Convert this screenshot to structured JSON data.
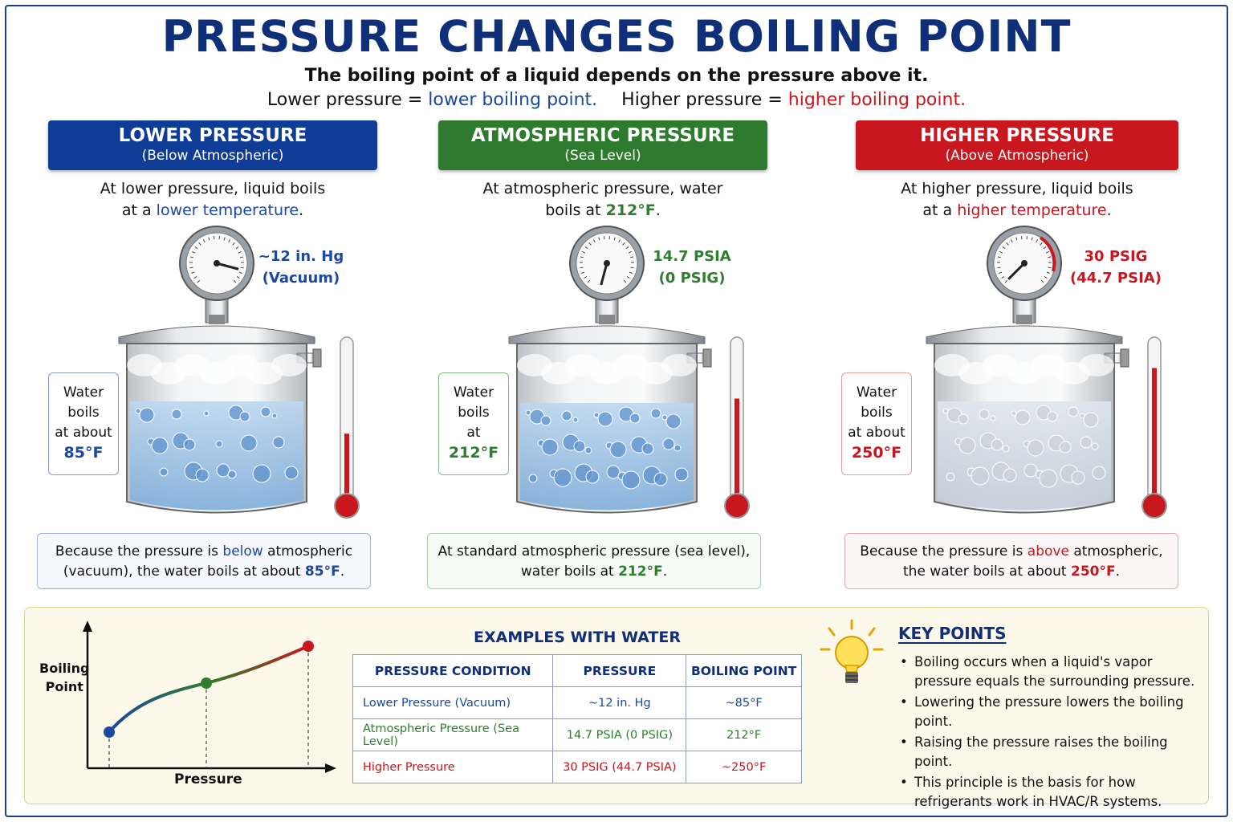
{
  "title": "PRESSURE CHANGES BOILING POINT",
  "subtitle": {
    "line1": "The boiling point of a liquid depends on the pressure above it.",
    "line2_a": "Lower pressure = ",
    "line2_b": "lower boiling point.",
    "line2_c": "Higher pressure = ",
    "line2_d": "higher boiling point."
  },
  "colors": {
    "blue": "#1b48a0",
    "green": "#2f7d2f",
    "red": "#c8171e",
    "title": "#0f2f78"
  },
  "panels": [
    {
      "banner_title": "LOWER PRESSURE",
      "banner_sub": "(Below Atmospheric)",
      "desc_a": "At lower pressure, liquid boils",
      "desc_b": "at a ",
      "desc_c": "lower temperature",
      "desc_d": ".",
      "gauge_1": "~12 in. Hg",
      "gauge_2": "(Vacuum)",
      "side_1": "Water",
      "side_2": "boils",
      "side_3": "at about",
      "side_value": "85°F",
      "note_a": "Because the pressure is ",
      "note_b": "below",
      "note_c": " atmospheric",
      "note_d": "(vacuum), the water boils at about ",
      "note_e": "85°F",
      "note_f": ".",
      "thermometer_level": 0.42
    },
    {
      "banner_title": "ATMOSPHERIC PRESSURE",
      "banner_sub": "(Sea Level)",
      "desc_a": "At atmospheric pressure, water",
      "desc_b": "boils at ",
      "desc_c": "212°F",
      "desc_d": ".",
      "gauge_1": "14.7 PSIA",
      "gauge_2": "(0 PSIG)",
      "side_1": "Water",
      "side_2": "boils",
      "side_3": "at",
      "side_value": "212°F",
      "note_a": "At standard atmospheric pressure (sea level),",
      "note_d": "water boils at ",
      "note_e": "212°F",
      "note_f": ".",
      "thermometer_level": 0.65
    },
    {
      "banner_title": "HIGHER PRESSURE",
      "banner_sub": "(Above Atmospheric)",
      "desc_a": "At higher pressure, liquid boils",
      "desc_b": "at a ",
      "desc_c": "higher temperature",
      "desc_d": ".",
      "gauge_1": "30 PSIG",
      "gauge_2": "(44.7 PSIA)",
      "side_1": "Water",
      "side_2": "boils",
      "side_3": "at about",
      "side_value": "250°F",
      "note_a": "Because the pressure is ",
      "note_b": "above",
      "note_c": " atmospheric,",
      "note_d": "the water boils at about ",
      "note_e": "250°F",
      "note_f": ".",
      "thermometer_level": 0.85
    }
  ],
  "graph": {
    "ylabel_1": "Boiling",
    "ylabel_2": "Point",
    "xlabel": "Pressure"
  },
  "examples": {
    "title": "EXAMPLES WITH WATER",
    "headers": [
      "PRESSURE CONDITION",
      "PRESSURE",
      "BOILING POINT"
    ],
    "rows": [
      [
        "Lower Pressure (Vacuum)",
        "~12 in. Hg",
        "~85°F"
      ],
      [
        "Atmospheric Pressure (Sea Level)",
        "14.7 PSIA (0 PSIG)",
        "212°F"
      ],
      [
        "Higher Pressure",
        "30 PSIG (44.7 PSIA)",
        "~250°F"
      ]
    ]
  },
  "key_points": {
    "title": "KEY POINTS",
    "items": [
      "Boiling occurs when a liquid's vapor pressure equals the surrounding pressure.",
      "Lowering the pressure lowers the boiling point.",
      "Raising the pressure raises the boiling point.",
      "This principle is the basis for how refrigerants work in HVAC/R systems."
    ]
  }
}
